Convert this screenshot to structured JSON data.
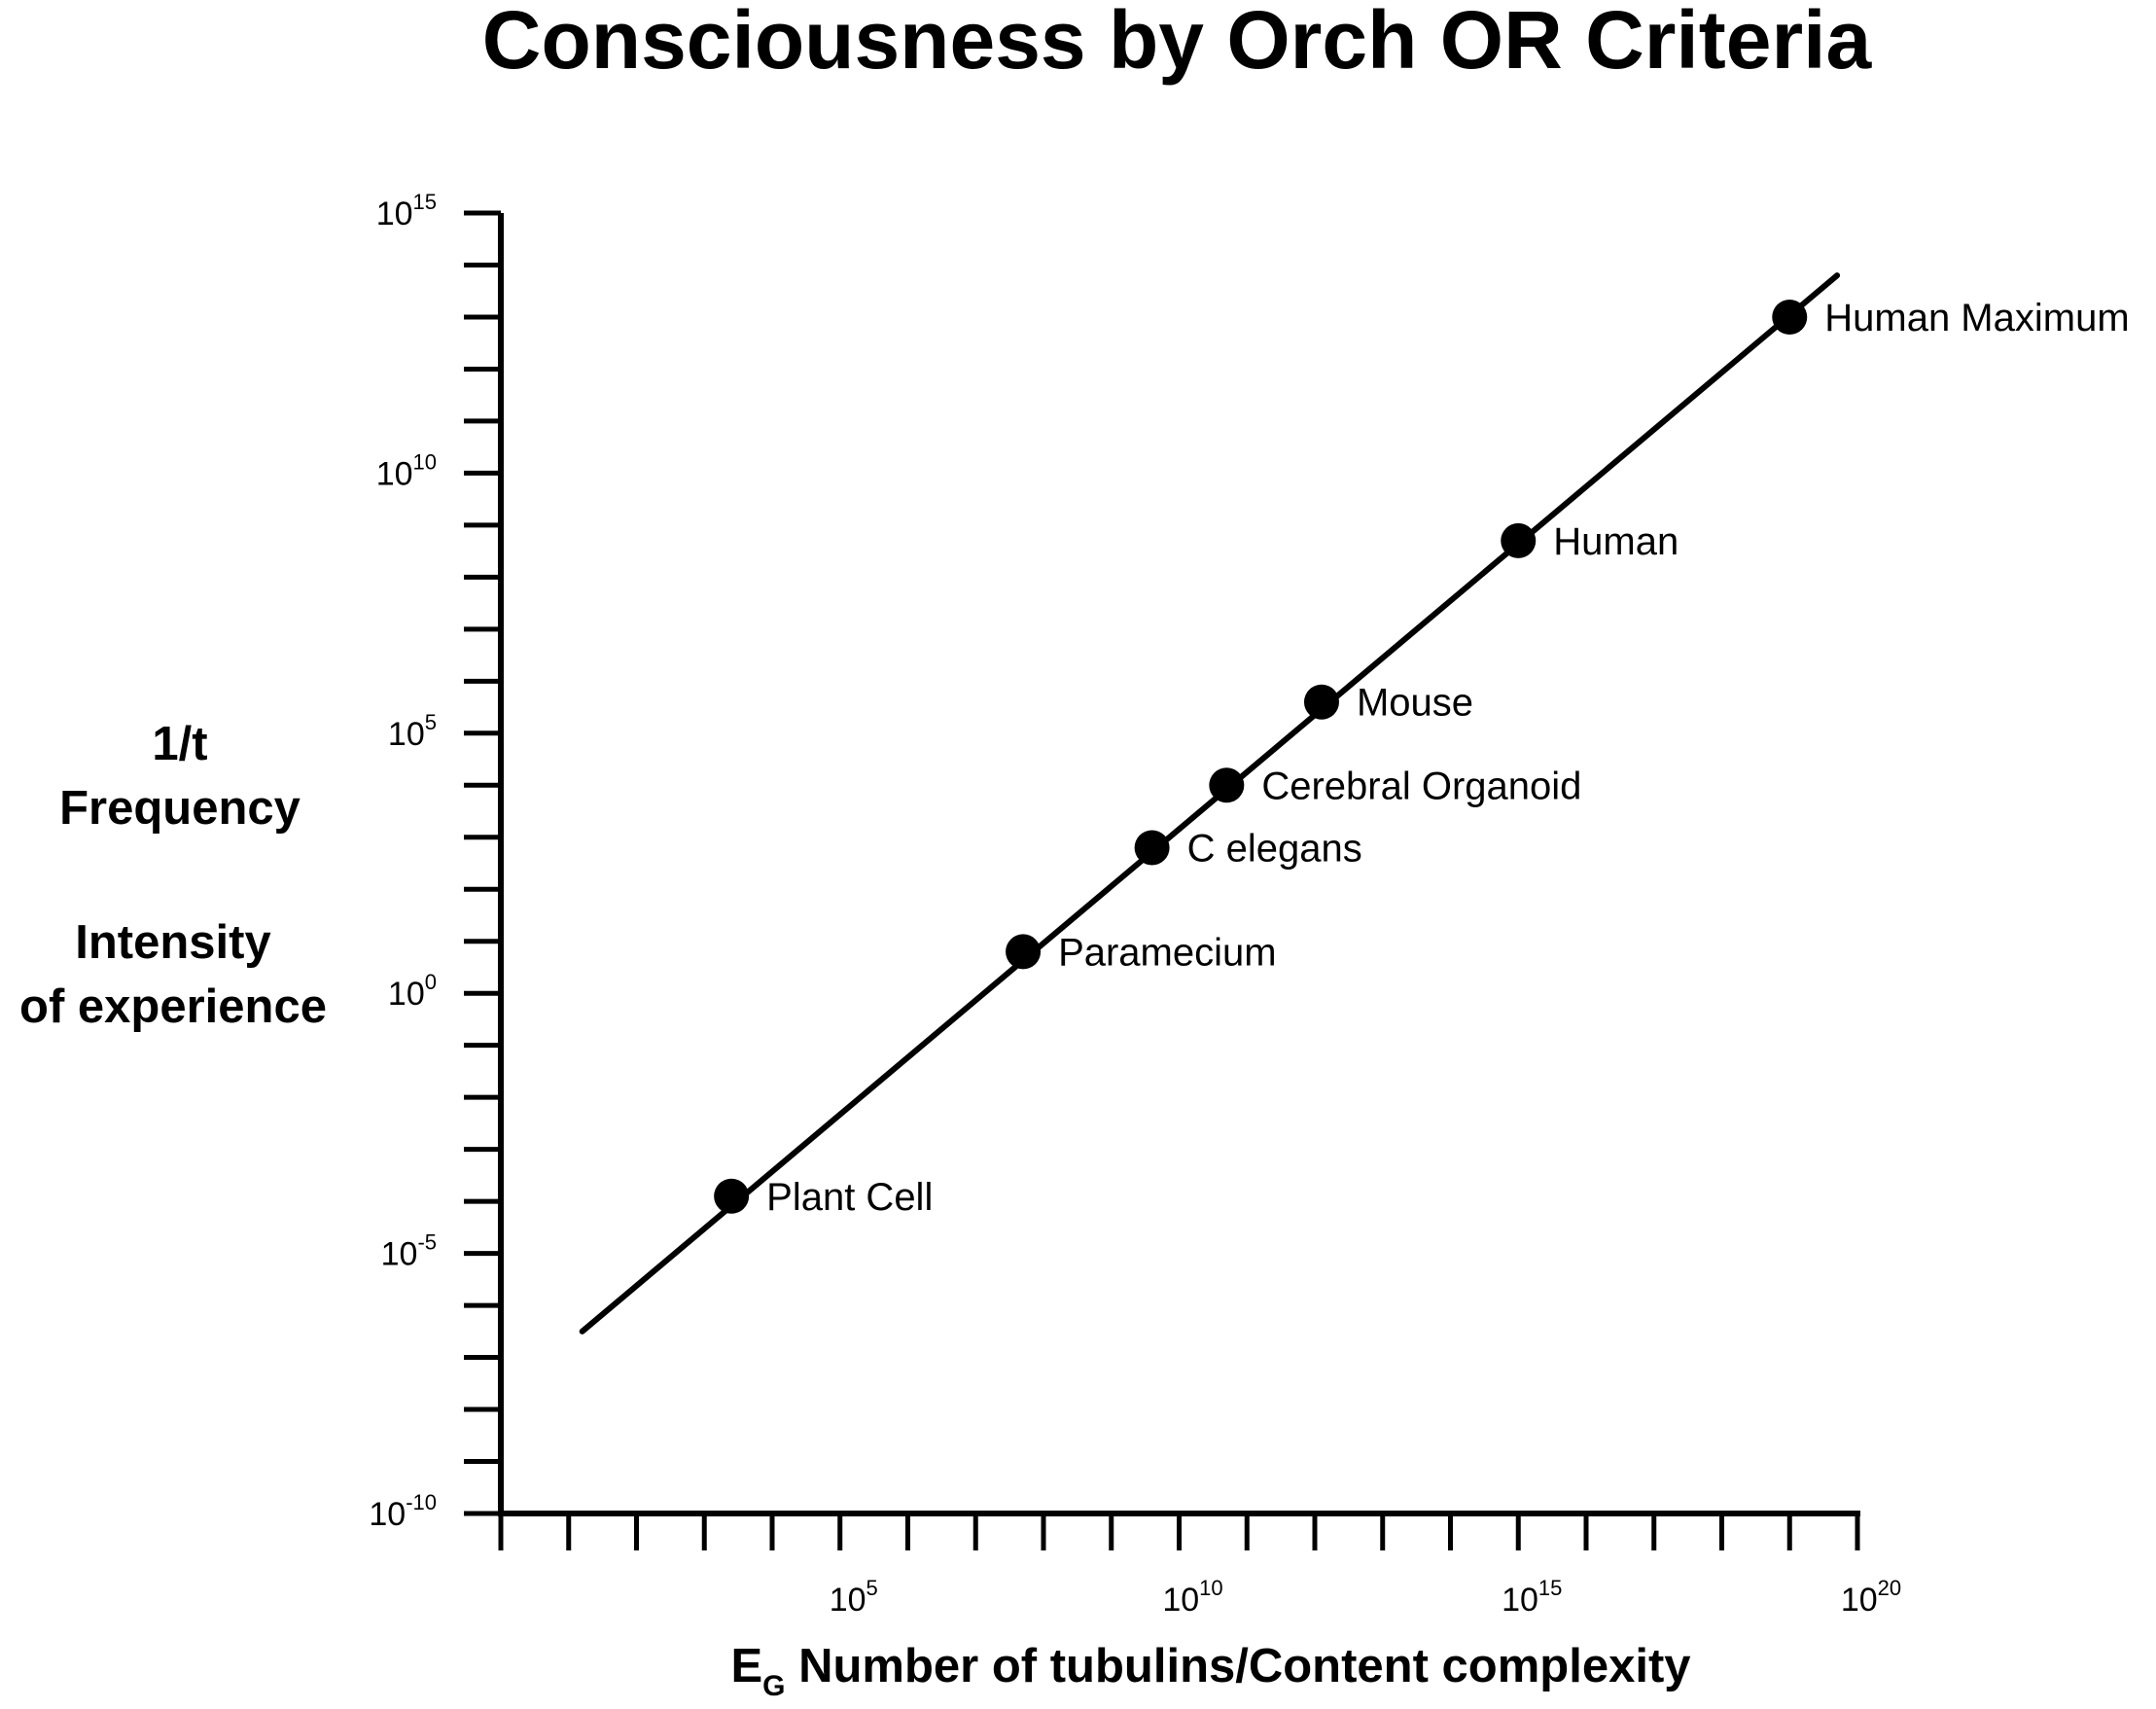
{
  "chart_data": {
    "type": "scatter",
    "title": "Consciousness by Orch OR Criteria",
    "ylabel_lines": [
      "1/t",
      "Frequency",
      "Intensity",
      "of experience"
    ],
    "xlabel": {
      "main": "E",
      "subscript": "G",
      "rest": " Number of tubulins/Content complexity"
    },
    "xscale": "log",
    "yscale": "log",
    "xlim_exp": [
      0,
      20
    ],
    "ylim_exp": [
      -10,
      15
    ],
    "x_ticks": [
      {
        "exp": 5,
        "base": "10",
        "sup": "5"
      },
      {
        "exp": 10,
        "base": "10",
        "sup": "10"
      },
      {
        "exp": 15,
        "base": "10",
        "sup": "15"
      },
      {
        "exp": 20,
        "base": "10",
        "sup": "20"
      }
    ],
    "y_ticks": [
      {
        "exp": 15,
        "base": "10",
        "sup": "15"
      },
      {
        "exp": 10,
        "base": "10",
        "sup": "10"
      },
      {
        "exp": 5,
        "base": "10",
        "sup": "5"
      },
      {
        "exp": 0,
        "base": "10",
        "sup": "0"
      },
      {
        "exp": -5,
        "base": "10",
        "sup": "-5"
      },
      {
        "exp": -10,
        "base": "10",
        "sup": "-10"
      }
    ],
    "trend_line": {
      "x_exp": [
        1.2,
        19.7
      ],
      "y_exp": [
        -6.5,
        13.8
      ]
    },
    "points": [
      {
        "label": "Plant Cell",
        "x_exp": 3.4,
        "y_exp": -3.9
      },
      {
        "label": "Paramecium",
        "x_exp": 7.7,
        "y_exp": 0.8
      },
      {
        "label": "C elegans",
        "x_exp": 9.6,
        "y_exp": 2.8
      },
      {
        "label": "Cerebral Organoid",
        "x_exp": 10.7,
        "y_exp": 4.0
      },
      {
        "label": "Mouse",
        "x_exp": 12.1,
        "y_exp": 5.6
      },
      {
        "label": "Human",
        "x_exp": 15.0,
        "y_exp": 8.7
      },
      {
        "label": "Human Maximum",
        "x_exp": 19.0,
        "y_exp": 13.0
      }
    ]
  }
}
